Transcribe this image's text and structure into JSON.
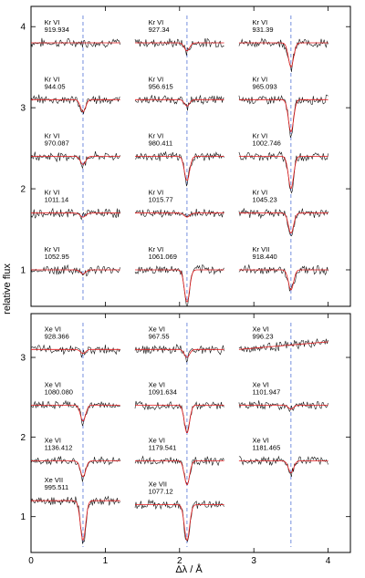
{
  "chart_data": {
    "type": "line",
    "ylabel": "relative flux",
    "xlabel": "Δλ / Å",
    "x_ticks": [
      "0",
      "1",
      "2",
      "3",
      "4"
    ],
    "xlim": [
      0,
      4.3
    ],
    "panels": [
      {
        "name": "Kr",
        "ylim": [
          0.55,
          4.25
        ],
        "y_ticks": [
          "1",
          "2",
          "3",
          "4"
        ],
        "line_centers": [
          0.7,
          2.1,
          3.5
        ],
        "lines": [
          {
            "ion": "Kr VI",
            "wavelength": "919.934",
            "col": 0,
            "continuum": 3.8,
            "depth": 0.0
          },
          {
            "ion": "Kr VI",
            "wavelength": "927.34",
            "col": 1,
            "continuum": 3.8,
            "depth": 0.1
          },
          {
            "ion": "Kr VI",
            "wavelength": "931.39",
            "col": 2,
            "continuum": 3.8,
            "depth": 0.3
          },
          {
            "ion": "Kr VI",
            "wavelength": "944.05",
            "col": 0,
            "continuum": 3.1,
            "depth": 0.15
          },
          {
            "ion": "Kr VI",
            "wavelength": "956.615",
            "col": 1,
            "continuum": 3.1,
            "depth": 0.08
          },
          {
            "ion": "Kr VI",
            "wavelength": "965.093",
            "col": 2,
            "continuum": 3.1,
            "depth": 0.4
          },
          {
            "ion": "Kr VI",
            "wavelength": "970.087",
            "col": 0,
            "continuum": 2.4,
            "depth": 0.1
          },
          {
            "ion": "Kr VI",
            "wavelength": "980.411",
            "col": 1,
            "continuum": 2.4,
            "depth": 0.3
          },
          {
            "ion": "Kr VI",
            "wavelength": "1002.746",
            "col": 2,
            "continuum": 2.4,
            "depth": 0.4
          },
          {
            "ion": "Kr VI",
            "wavelength": "1011.14",
            "col": 0,
            "continuum": 1.7,
            "depth": 0.05
          },
          {
            "ion": "Kr VI",
            "wavelength": "1015.77",
            "col": 1,
            "continuum": 1.7,
            "depth": 0.05
          },
          {
            "ion": "Kr VI",
            "wavelength": "1045.23",
            "col": 2,
            "continuum": 1.7,
            "depth": 0.25
          },
          {
            "ion": "Kr VI",
            "wavelength": "1052.95",
            "col": 0,
            "continuum": 1.0,
            "depth": 0.05
          },
          {
            "ion": "Kr VI",
            "wavelength": "1061.069",
            "col": 1,
            "continuum": 1.0,
            "depth": 0.4
          },
          {
            "ion": "Kr VII",
            "wavelength": "918.440",
            "col": 2,
            "continuum": 1.0,
            "depth": 0.25
          }
        ]
      },
      {
        "name": "Xe",
        "ylim": [
          0.55,
          3.55
        ],
        "y_ticks": [
          "1",
          "2",
          "3"
        ],
        "line_centers": [
          0.7,
          2.1,
          3.5
        ],
        "lines": [
          {
            "ion": "Xe VI",
            "wavelength": "928.366",
            "col": 0,
            "continuum": 3.1,
            "depth": 0.05
          },
          {
            "ion": "Xe VI",
            "wavelength": "967.55",
            "col": 1,
            "continuum": 3.1,
            "depth": 0.1
          },
          {
            "ion": "Xe VI",
            "wavelength": "996.23",
            "col": 2,
            "continuum": 3.1,
            "depth": 0.0
          },
          {
            "ion": "Xe VI",
            "wavelength": "1080.080",
            "col": 0,
            "continuum": 2.4,
            "depth": 0.2
          },
          {
            "ion": "Xe VI",
            "wavelength": "1091.634",
            "col": 1,
            "continuum": 2.4,
            "depth": 0.35
          },
          {
            "ion": "Xe VI",
            "wavelength": "1101.947",
            "col": 2,
            "continuum": 2.4,
            "depth": 0.05
          },
          {
            "ion": "Xe VI",
            "wavelength": "1136.412",
            "col": 0,
            "continuum": 1.7,
            "depth": 0.2
          },
          {
            "ion": "Xe VI",
            "wavelength": "1179.541",
            "col": 1,
            "continuum": 1.7,
            "depth": 0.3
          },
          {
            "ion": "Xe VI",
            "wavelength": "1181.465",
            "col": 2,
            "continuum": 1.7,
            "depth": 0.15
          },
          {
            "ion": "Xe VII",
            "wavelength": "995.511",
            "col": 0,
            "continuum": 1.2,
            "depth": 0.5
          },
          {
            "ion": "Xe VII",
            "wavelength": "1077.12",
            "col": 1,
            "continuum": 1.15,
            "depth": 0.45
          }
        ]
      }
    ],
    "colors": {
      "observed": "#111111",
      "model": "#e31a1c",
      "marker": "#3a5fd0"
    }
  }
}
